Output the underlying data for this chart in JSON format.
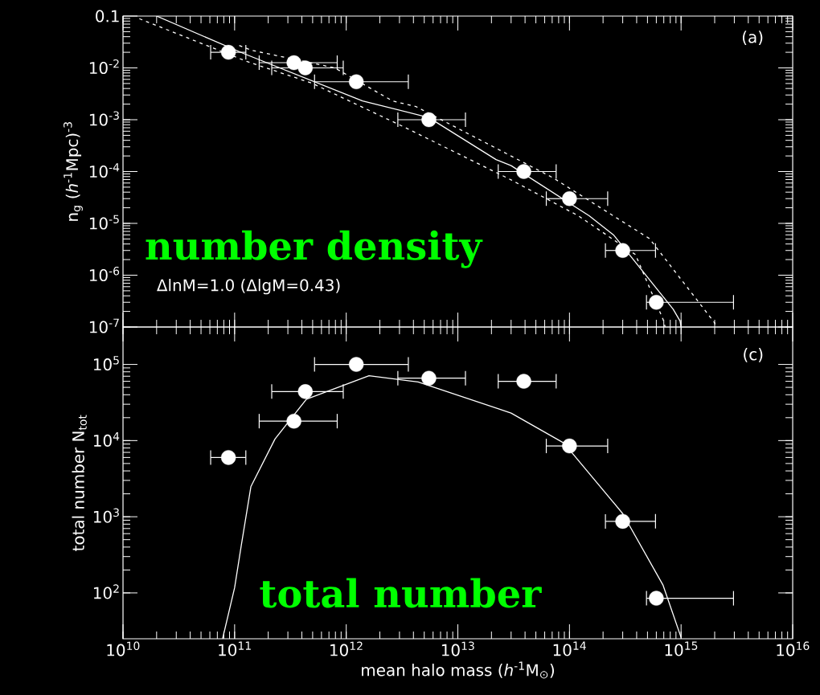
{
  "chart_data": [
    {
      "type": "scatter",
      "ylabel": "n$_{g}$ (*h*$^{-1}$Mpc)$^{-3}$",
      "annotations": [
        "(a)",
        "number density",
        "ΔlnM=1.0 (ΔlgM=0.43)"
      ],
      "log": "xy",
      "xlim": [
        10000000000.0,
        1e+16
      ],
      "ylim": [
        1e-07,
        0.1
      ],
      "tick_labels": "y",
      "xticks": [
        10000000000.0,
        100000000000.0,
        1000000000000.0,
        10000000000000.0,
        100000000000000.0,
        1000000000000000.0,
        1e+16
      ],
      "yticks": [
        {
          "value": 1e-07,
          "label": "10$^{-7}$"
        },
        {
          "value": 1e-06,
          "label": "10$^{-6}$"
        },
        {
          "value": 1e-05,
          "label": "10$^{-5}$"
        },
        {
          "value": 0.0001,
          "label": "10$^{-4}$"
        },
        {
          "value": 0.001,
          "label": "10$^{-3}$"
        },
        {
          "value": 0.01,
          "label": "10$^{-2}$"
        },
        0.1
      ],
      "series": [
        {
          "color": "#ffffff",
          "marker": "circle",
          "x": [
            88000000000.0,
            340000000000.0,
            430000000000.0,
            1230000000000.0,
            5500000000000.0,
            39000000000000.0,
            100000000000000.0,
            300000000000000.0,
            600000000000000.0
          ],
          "values": [
            0.02,
            0.0126,
            0.01,
            0.0054,
            0.001,
            0.0001,
            3e-05,
            3e-06,
            3e-07
          ],
          "xerrors": [
            [
              61000000000.0,
              126000000000.0
            ],
            [
              166000000000.0,
              830000000000.0
            ],
            [
              215000000000.0,
              940000000000.0
            ],
            [
              520000000000.0,
              3600000000000.0
            ],
            [
              2900000000000.0,
              11700000000000.0
            ],
            [
              23000000000000.0,
              76000000000000.0
            ],
            [
              62000000000000.0,
              220000000000000.0
            ],
            [
              210000000000000.0,
              590000000000000.0
            ],
            [
              490000000000000.0,
              2950000000000000.0
            ]
          ]
        },
        {
          "type": "line",
          "color": "#ffffff",
          "line_style": "solid",
          "marker": "none",
          "x": [
            20000000000.0,
            120000000000.0,
            1400000000000.0,
            5500000000000.0,
            22000000000000.0,
            30000000000000.0,
            150000000000000.0,
            250000000000000.0,
            850000000000000.0,
            980000000000000.0,
            1000000000000000.0
          ],
          "values": [
            0.1,
            0.019,
            0.0023,
            0.0011,
            0.00017,
            0.00013,
            1.4e-05,
            5.9e-06,
            2.2e-07,
            1.3e-07,
            1e-07
          ]
        },
        {
          "type": "line",
          "color": "#ffffff",
          "line_style": "dashed",
          "marker": "none",
          "x": [
            110000000000.0,
            140000000000.0,
            790000000000.0,
            2600000000000.0,
            4200000000000.0,
            71000000000000.0,
            520000000000000.0,
            1200000000000000.0,
            2000000000000000.0,
            2040000000000000.0
          ],
          "values": [
            0.027,
            0.022,
            0.01,
            0.0023,
            0.0018,
            7.6e-05,
            5.1e-06,
            5e-07,
            1.2e-07,
            1e-07
          ]
        },
        {
          "type": "line",
          "color": "#ffffff",
          "line_style": "dashed",
          "marker": "none",
          "x": [
            14000000000.0,
            130000000000.0,
            490000000000.0,
            3500000000000.0,
            30000000000000.0,
            120000000000000.0,
            390000000000000.0,
            690000000000000.0,
            720000000000000.0
          ],
          "values": [
            0.089,
            0.0132,
            0.0051,
            0.00068,
            6.9e-05,
            1.4e-05,
            2.5e-06,
            1.4e-07,
            1e-07
          ]
        }
      ]
    },
    {
      "type": "scatter",
      "xlabel": "mean halo mass (*h*$^{-1}$M$_{⊙}$)",
      "ylabel": "total number N$_{tot}$",
      "annotations": [
        "(c)",
        "total number"
      ],
      "log": "xy",
      "xlim": [
        10000000000.0,
        1e+16
      ],
      "ylim": [
        25,
        310000
      ],
      "xticks": [
        {
          "value": 10000000000.0,
          "label": "10$^{10}$"
        },
        {
          "value": 100000000000.0,
          "label": "10$^{11}$"
        },
        {
          "value": 1000000000000.0,
          "label": "10$^{12}$"
        },
        {
          "value": 10000000000000.0,
          "label": "10$^{13}$"
        },
        {
          "value": 100000000000000.0,
          "label": "10$^{14}$"
        },
        {
          "value": 1000000000000000.0,
          "label": "10$^{15}$"
        },
        {
          "value": 1e+16,
          "label": "10$^{16}$"
        }
      ],
      "yticks": [
        {
          "value": 100,
          "label": "10$^{2}$"
        },
        {
          "value": 1000,
          "label": "10$^{3}$"
        },
        {
          "value": 10000,
          "label": "10$^{4}$"
        },
        {
          "value": 100000,
          "label": "10$^{5}$"
        }
      ],
      "series": [
        {
          "color": "#ffffff",
          "marker": "circle",
          "x": [
            88000000000.0,
            340000000000.0,
            430000000000.0,
            1230000000000.0,
            5500000000000.0,
            39000000000000.0,
            100000000000000.0,
            300000000000000.0,
            600000000000000.0
          ],
          "values": [
            6000,
            18000,
            44000,
            100000,
            66000,
            60000,
            8500,
            870,
            85
          ],
          "xerrors": [
            [
              61000000000.0,
              126000000000.0
            ],
            [
              166000000000.0,
              830000000000.0
            ],
            [
              215000000000.0,
              940000000000.0
            ],
            [
              520000000000.0,
              3600000000000.0
            ],
            [
              2900000000000.0,
              11700000000000.0
            ],
            [
              23000000000000.0,
              76000000000000.0
            ],
            [
              62000000000000.0,
              220000000000000.0
            ],
            [
              210000000000000.0,
              590000000000000.0
            ],
            [
              490000000000000.0,
              2950000000000000.0
            ]
          ]
        },
        {
          "type": "line",
          "color": "#ffffff",
          "line_style": "solid",
          "marker": "none",
          "x": [
            78000000000.0,
            100000000000.0,
            115000000000.0,
            140000000000.0,
            230000000000.0,
            440000000000.0,
            1600000000000.0,
            4400000000000.0,
            30000000000000.0,
            89000000000000.0,
            300000000000000.0,
            690000000000000.0,
            1000000000000000.0
          ],
          "values": [
            25,
            117,
            430,
            2500,
            10500,
            35000,
            71000,
            59000,
            23000,
            9300,
            1100,
            126,
            26
          ]
        }
      ]
    }
  ]
}
